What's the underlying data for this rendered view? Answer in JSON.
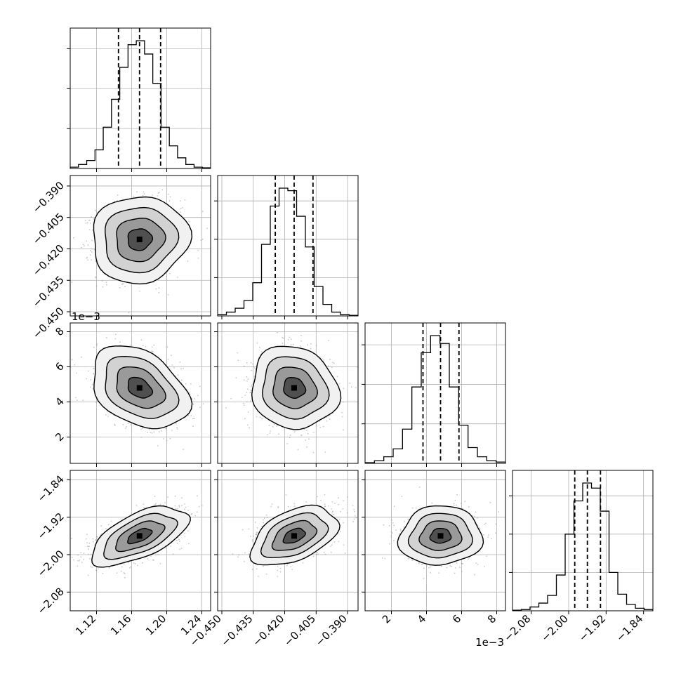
{
  "chart_data": {
    "type": "corner",
    "description_of_layout": "lower-triangular grid of 1D histograms (diagonal) and 2D density contours with scatter (off-diagonal)",
    "parameters": [
      {
        "ticks": [
          1.12,
          1.16,
          1.2,
          1.24
        ],
        "tick_labels": [
          "1.12",
          "1.16",
          "1.20",
          "1.24"
        ],
        "range": [
          1.09,
          1.25
        ],
        "offset_text": "",
        "median": 1.169,
        "q16": 1.145,
        "q84": 1.193
      },
      {
        "ticks": [
          -0.45,
          -0.435,
          -0.42,
          -0.405,
          -0.39
        ],
        "tick_labels": [
          "−0.450",
          "−0.435",
          "−0.420",
          "−0.405",
          "−0.390"
        ],
        "range": [
          -0.452,
          -0.385
        ],
        "offset_text": "",
        "median": -0.4155,
        "q16": -0.4245,
        "q84": -0.4065
      },
      {
        "ticks": [
          2,
          4,
          6,
          8
        ],
        "tick_labels": [
          "2",
          "4",
          "6",
          "8"
        ],
        "range": [
          0.5,
          8.5
        ],
        "offset_text": "1e−3",
        "median": 4.8,
        "q16": 3.8,
        "q84": 5.85
      },
      {
        "ticks": [
          -2.08,
          -2.0,
          -1.92,
          -1.84
        ],
        "tick_labels": [
          "−2.08",
          "−2.00",
          "−1.92",
          "−1.84"
        ],
        "range": [
          -2.12,
          -1.82
        ],
        "offset_text": "",
        "median": -1.96,
        "q16": -1.987,
        "q84": -1.932
      }
    ],
    "histograms": [
      [
        0.01,
        0.03,
        0.06,
        0.14,
        0.31,
        0.52,
        0.76,
        0.93,
        0.96,
        0.86,
        0.64,
        0.31,
        0.17,
        0.08,
        0.03,
        0.01,
        0.005
      ],
      [
        0.01,
        0.03,
        0.06,
        0.12,
        0.26,
        0.56,
        0.86,
        1.0,
        0.98,
        0.78,
        0.54,
        0.23,
        0.09,
        0.03,
        0.01,
        0.005
      ],
      [
        0.005,
        0.02,
        0.05,
        0.11,
        0.26,
        0.58,
        0.84,
        0.97,
        0.91,
        0.58,
        0.29,
        0.12,
        0.05,
        0.02,
        0.01
      ],
      [
        0.005,
        0.01,
        0.03,
        0.06,
        0.12,
        0.28,
        0.6,
        0.86,
        1.0,
        0.96,
        0.78,
        0.3,
        0.13,
        0.05,
        0.02,
        0.01
      ]
    ],
    "correlations": {
      "1-0": 0.05,
      "2-0": -0.35,
      "2-1": -0.1,
      "3-0": 0.6,
      "3-1": 0.45,
      "3-2": 0.05
    },
    "contour_levels_sigma": [
      0.5,
      1.0,
      1.5,
      2.0
    ],
    "grid": true,
    "quantile_line_style": "dashed"
  }
}
